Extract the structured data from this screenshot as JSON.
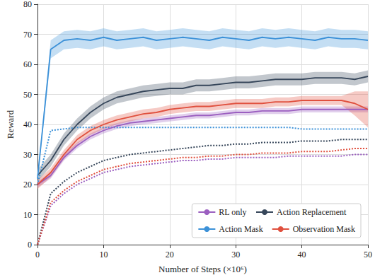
{
  "chart_data": {
    "type": "line",
    "x_label": "Number of Steps (×10⁶)",
    "y_label": "Reward",
    "x": [
      0,
      2,
      4,
      6,
      8,
      10,
      12,
      14,
      16,
      18,
      20,
      22,
      24,
      26,
      28,
      30,
      32,
      34,
      36,
      38,
      40,
      42,
      44,
      46,
      48,
      50
    ],
    "xlim": [
      0,
      50
    ],
    "xticks": [
      0,
      10,
      20,
      30,
      40,
      50
    ],
    "ylim": [
      0,
      80
    ],
    "yticks": [
      0,
      10,
      20,
      30,
      40,
      50,
      60,
      70,
      80
    ],
    "grid": true,
    "legend": "lower right",
    "series": [
      {
        "name": "RL only",
        "color": "#9b5fc0",
        "line_style": "solid",
        "values": [
          20,
          23,
          29,
          33,
          36,
          38,
          39.5,
          40.5,
          41,
          41.5,
          42,
          42.5,
          43,
          43,
          43.5,
          44,
          44,
          44.5,
          44.5,
          44.5,
          45,
          45,
          45,
          45,
          45,
          45
        ],
        "lower": [
          19,
          22,
          28,
          32,
          35,
          37,
          38.5,
          39.5,
          40,
          40.5,
          41,
          41.5,
          42,
          42,
          42.5,
          43,
          43,
          43.5,
          43.5,
          43.5,
          44,
          44,
          44,
          44,
          44,
          44
        ],
        "upper": [
          21,
          24,
          30,
          34,
          37,
          39,
          40.5,
          41.5,
          42,
          42.5,
          43,
          43.5,
          44,
          44,
          44.5,
          45,
          45,
          45.5,
          45.5,
          45.5,
          46,
          46,
          46,
          46,
          46,
          46
        ]
      },
      {
        "name": "Action Replacement",
        "color": "#36465a",
        "line_style": "solid",
        "values": [
          23,
          28,
          35,
          40,
          44,
          47,
          49,
          50,
          51,
          51.5,
          52,
          52,
          53,
          53,
          53.5,
          54,
          54,
          54.5,
          55,
          55,
          55,
          55.5,
          55.5,
          55.5,
          55,
          56
        ],
        "lower": [
          21,
          26,
          33,
          38,
          42,
          45,
          47,
          48,
          49,
          49.5,
          50,
          50,
          51,
          51,
          51.5,
          52,
          52,
          52.5,
          53,
          53,
          53,
          53.5,
          53.5,
          53.5,
          53,
          54
        ],
        "upper": [
          25,
          30,
          37,
          42,
          46,
          49,
          51,
          52,
          53,
          53.5,
          54,
          54,
          55,
          55,
          55.5,
          56,
          56,
          56.5,
          57,
          57,
          57,
          57.5,
          57.5,
          57.5,
          57,
          58
        ]
      },
      {
        "name": "Action Mask",
        "color": "#3c91d8",
        "line_style": "solid",
        "values": [
          22,
          65,
          68,
          68.5,
          68,
          69,
          68,
          68.5,
          69,
          68,
          68.5,
          69,
          68.5,
          68,
          69,
          68.5,
          68,
          69,
          68.5,
          69,
          68.5,
          68,
          69,
          68.5,
          68.5,
          68
        ],
        "lower": [
          21,
          62,
          65,
          65.5,
          65,
          66,
          65,
          65.5,
          66,
          65,
          65.5,
          66,
          65.5,
          65,
          66,
          65.5,
          65,
          66,
          65.5,
          66,
          65.5,
          65,
          66,
          65.5,
          65.5,
          65
        ],
        "upper": [
          23,
          68,
          71,
          71.5,
          71,
          72,
          71,
          71.5,
          72,
          71,
          71.5,
          72,
          71.5,
          71,
          72,
          71.5,
          71,
          72,
          71.5,
          72,
          71.5,
          71,
          72,
          71.5,
          71.5,
          71
        ]
      },
      {
        "name": "Observation Mask",
        "color": "#e0503e",
        "line_style": "solid",
        "values": [
          20,
          24,
          30,
          35,
          38,
          40,
          41.5,
          42.5,
          43.5,
          44,
          45,
          45.5,
          46,
          46,
          46.5,
          47,
          47,
          47,
          47.5,
          47.5,
          48,
          48,
          48,
          48,
          47,
          45
        ],
        "lower": [
          18.5,
          22.5,
          28.5,
          33.5,
          36.5,
          38.5,
          40,
          41,
          42,
          42.5,
          43.5,
          44,
          44.5,
          44.5,
          45,
          45.5,
          45.5,
          45.5,
          46,
          46,
          46.5,
          46.5,
          46.5,
          46.5,
          43,
          39
        ],
        "upper": [
          21.5,
          25.5,
          31.5,
          36.5,
          39.5,
          41.5,
          43,
          44,
          45,
          45.5,
          46.5,
          47,
          47.5,
          47.5,
          48,
          48.5,
          48.5,
          48.5,
          49,
          49,
          49.5,
          49.5,
          49.5,
          49.5,
          51,
          51
        ]
      },
      {
        "name": "RL only",
        "color": "#9b5fc0",
        "line_style": "dotted",
        "values": [
          0,
          13,
          17,
          20,
          22,
          24,
          25,
          26,
          26.5,
          27,
          27.5,
          28,
          28,
          28.5,
          28.5,
          29,
          29,
          29,
          29,
          29.5,
          29.5,
          29.5,
          29.5,
          29.5,
          30,
          30
        ]
      },
      {
        "name": "Action Replacement",
        "color": "#36465a",
        "line_style": "dotted",
        "values": [
          0,
          17,
          21,
          24,
          26,
          28,
          29,
          30,
          30.5,
          31,
          31.5,
          32,
          32.5,
          33,
          33,
          33.5,
          33.5,
          34,
          34,
          34,
          34.5,
          34.5,
          34.5,
          35,
          35,
          35
        ]
      },
      {
        "name": "Action Mask",
        "color": "#3c91d8",
        "line_style": "dotted",
        "values": [
          20,
          38,
          38.5,
          39,
          39,
          39,
          39,
          39,
          39,
          39,
          39,
          39,
          39,
          39,
          39,
          39,
          39,
          39,
          39,
          39,
          38.5,
          38.5,
          38.5,
          38.5,
          38.5,
          38.5
        ]
      },
      {
        "name": "Observation Mask",
        "color": "#e0503e",
        "line_style": "dotted",
        "values": [
          0,
          14,
          18,
          21,
          23,
          25,
          26,
          27,
          27.5,
          28,
          28.5,
          29,
          29,
          29.5,
          29.5,
          30,
          30,
          30.5,
          30.5,
          30.5,
          31,
          31,
          31,
          31.5,
          32,
          32
        ]
      }
    ]
  }
}
